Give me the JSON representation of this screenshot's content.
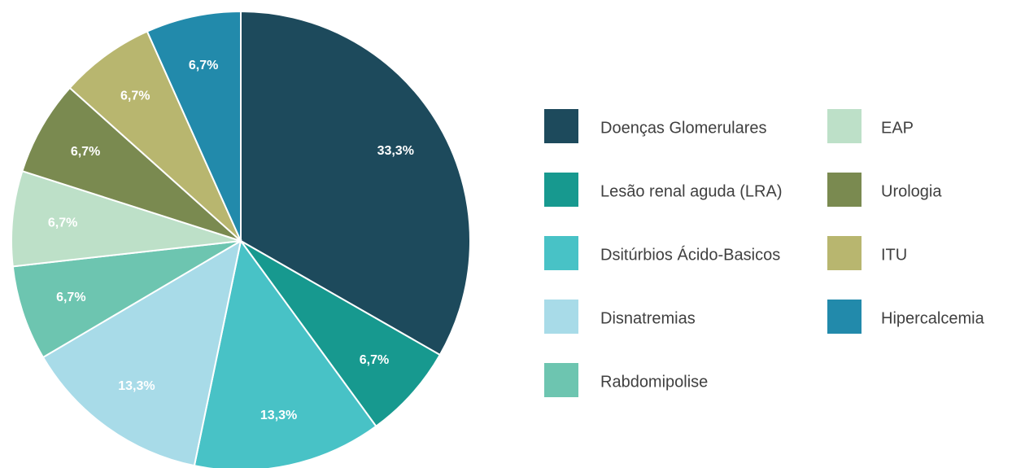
{
  "chart_data": {
    "type": "pie",
    "categories": [
      "Doenças Glomerulares",
      "Lesão renal aguda (LRA)",
      "Dsitúrbios Ácido-Basicos",
      "Disnatremias",
      "Rabdomipolise",
      "EAP",
      "Urologia",
      "ITU",
      "Hipercalcemia"
    ],
    "values": [
      33.3,
      6.7,
      13.3,
      13.3,
      6.7,
      6.7,
      6.7,
      6.7,
      6.7
    ],
    "value_labels": [
      "33,3%",
      "6,7%",
      "13,3%",
      "13,3%",
      "6,7%",
      "6,7%",
      "6,7%",
      "6,7%",
      "6,7%"
    ],
    "colors": [
      "#1d4a5c",
      "#17998f",
      "#48c2c6",
      "#a8dbe8",
      "#6dc5b0",
      "#bde0c8",
      "#7a8a50",
      "#b8b66f",
      "#228aab"
    ],
    "legend": "right"
  }
}
